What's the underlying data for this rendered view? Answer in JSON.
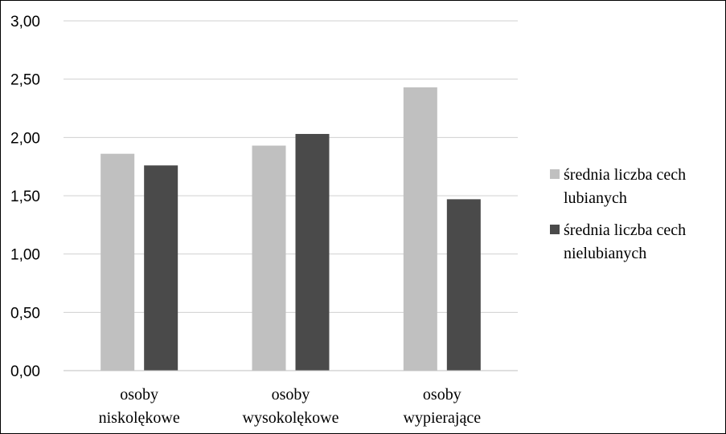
{
  "chart_data": {
    "type": "bar",
    "categories": [
      [
        "osoby",
        "niskolękowe"
      ],
      [
        "osoby",
        "wysokolękowe"
      ],
      [
        "osoby",
        "wypierające"
      ]
    ],
    "series": [
      {
        "name": [
          "średnia liczba cech",
          "lubianych"
        ],
        "color": "#c0c0c0",
        "values": [
          1.86,
          1.93,
          2.43
        ]
      },
      {
        "name": [
          "średnia liczba cech",
          "nielubianych"
        ],
        "color": "#4a4a4a",
        "values": [
          1.76,
          2.03,
          1.47
        ]
      }
    ],
    "ylim": [
      0,
      3
    ],
    "yticks": [
      "0,00",
      "0,50",
      "1,00",
      "1,50",
      "2,00",
      "2,50",
      "3,00"
    ],
    "grid": true,
    "legend_position": "right",
    "gridline_color": "#d0d0d0"
  }
}
